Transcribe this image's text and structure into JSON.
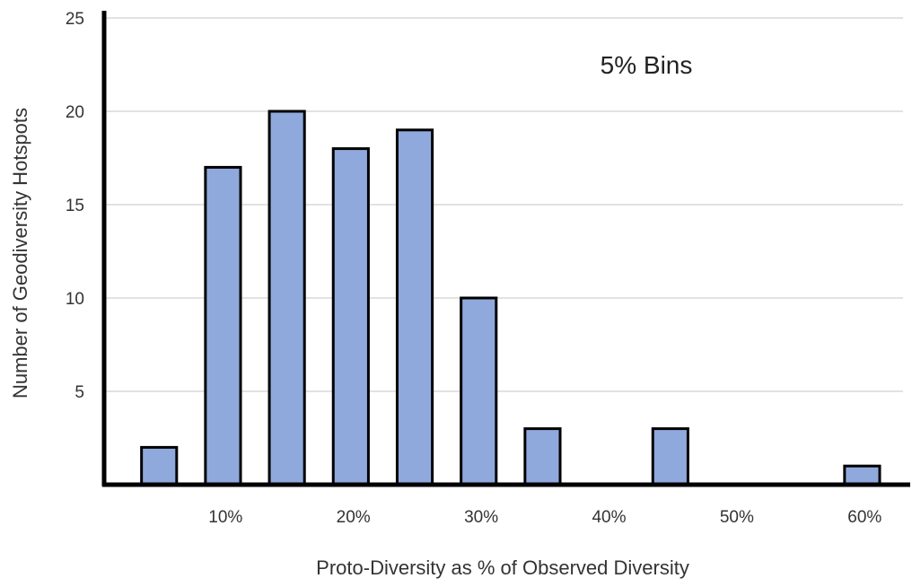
{
  "chart_data": {
    "type": "bar",
    "title": "",
    "annotation": "5% Bins",
    "xlabel": "Proto-Diversity as % of Observed Diversity",
    "ylabel": "Number  of Geodiversity Hotspots",
    "categories": [
      "5%",
      "10%",
      "15%",
      "20%",
      "25%",
      "30%",
      "35%",
      "40%",
      "45%",
      "50%",
      "55%",
      "60%"
    ],
    "values": [
      2,
      17,
      20,
      18,
      19,
      10,
      3,
      0,
      3,
      0,
      0,
      1
    ],
    "x_tick_labels": [
      {
        "label": "10%",
        "x": 10
      },
      {
        "label": "20%",
        "x": 20
      },
      {
        "label": "30%",
        "x": 30
      },
      {
        "label": "40%",
        "x": 40
      },
      {
        "label": "50%",
        "x": 50
      },
      {
        "label": "60%",
        "x": 60
      }
    ],
    "y_ticks": [
      {
        "label": "5",
        "value": 5
      },
      {
        "label": "10",
        "value": 10
      },
      {
        "label": "15",
        "value": 15
      },
      {
        "label": "20",
        "value": 20
      },
      {
        "label": "25",
        "value": 25
      }
    ],
    "ylim": [
      0,
      25
    ],
    "xlim": [
      0,
      62.5
    ],
    "grid": true,
    "legend": "none",
    "colors": {
      "bar_fill": "#8fa9dc",
      "bar_stroke": "#000000",
      "grid": "#d9d9d9",
      "axis": "#000000"
    }
  }
}
